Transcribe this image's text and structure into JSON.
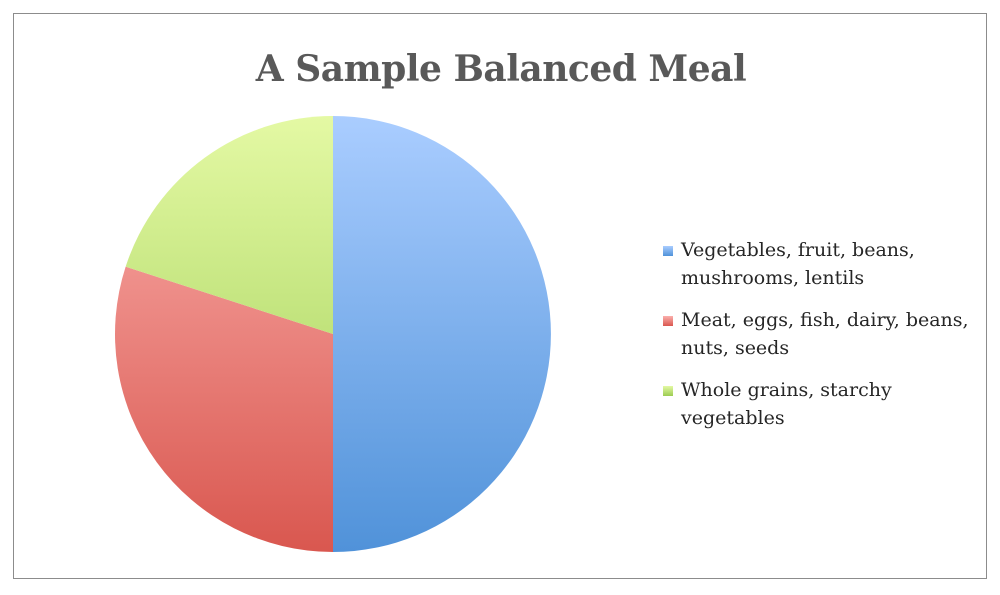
{
  "chart_data": {
    "type": "pie",
    "title": "A Sample Balanced Meal",
    "legend_position": "right",
    "slices": [
      {
        "label": "Vegetables, fruit, beans, mushrooms, lentils",
        "value": 50,
        "color_light": "#aacdff",
        "color_dark": "#5092d9"
      },
      {
        "label": "Meat, eggs, fish, dairy, beans, nuts, seeds",
        "value": 30,
        "color_light": "#fbb0ad",
        "color_dark": "#d9574f"
      },
      {
        "label": "Whole grains, starchy vegetables",
        "value": 20,
        "color_light": "#e4f9a4",
        "color_dark": "#9ccc52"
      }
    ]
  }
}
